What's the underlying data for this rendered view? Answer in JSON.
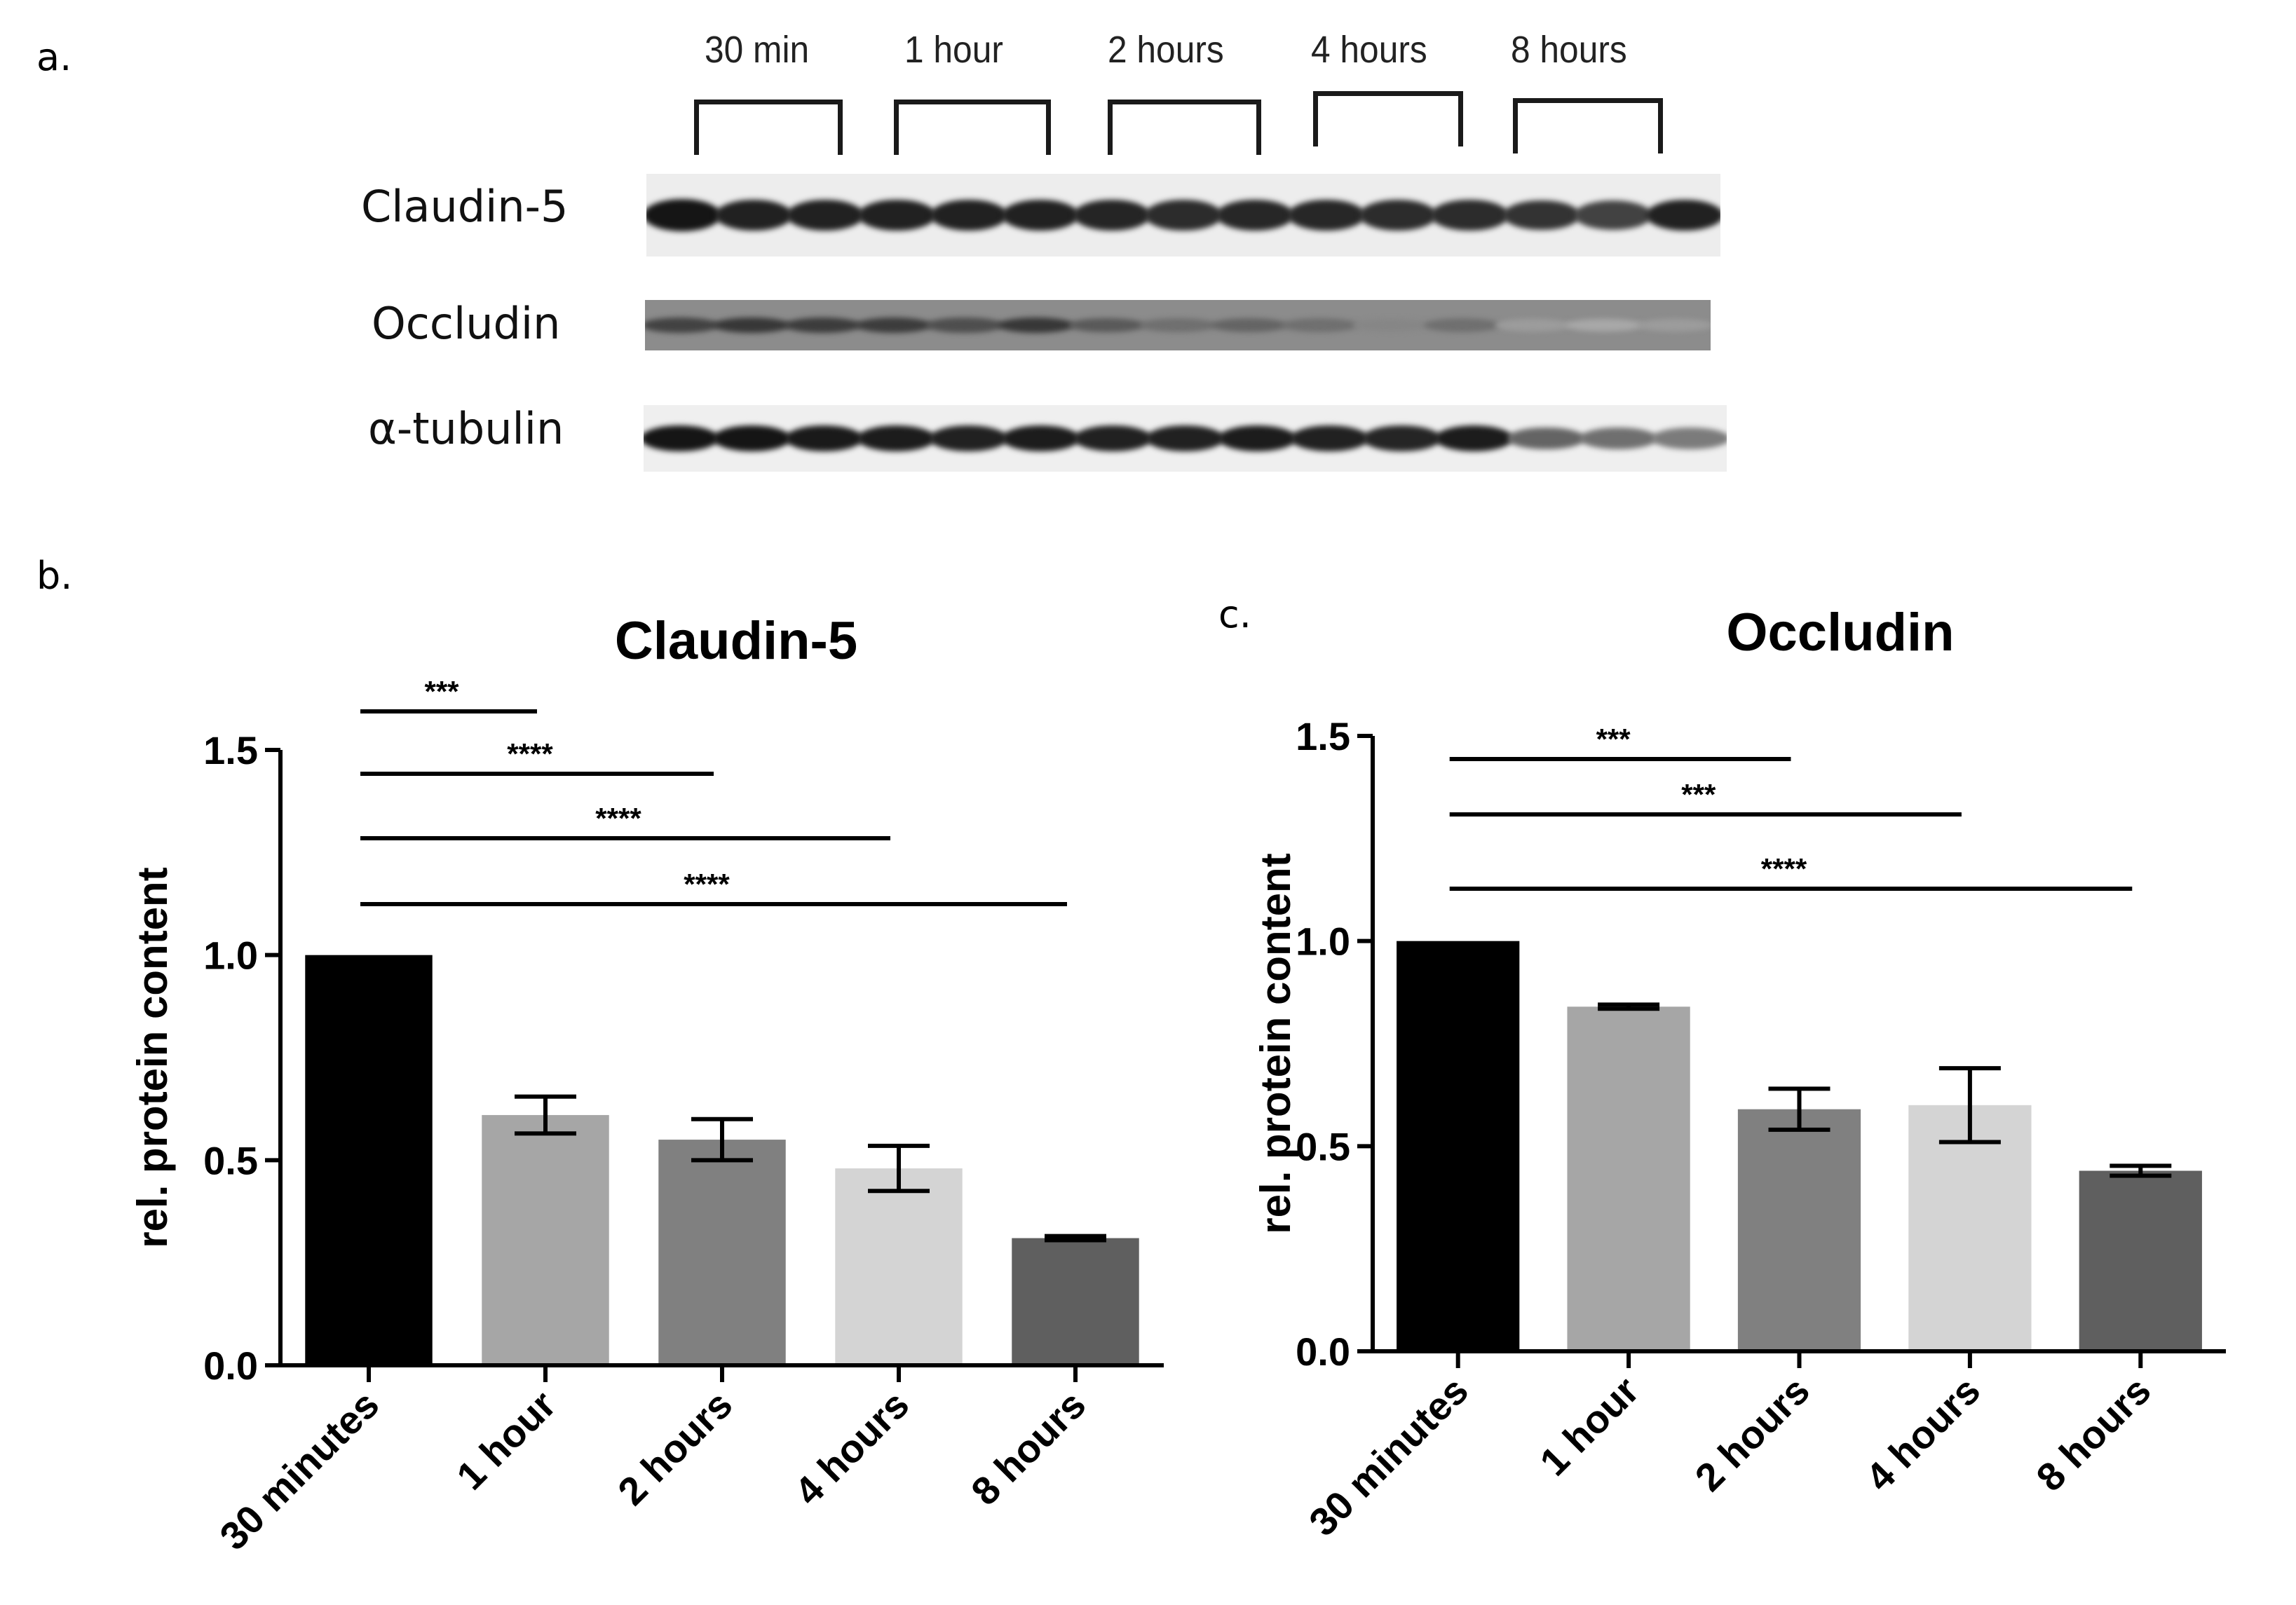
{
  "panels": {
    "a": "a.",
    "b": "b.",
    "c": "c."
  },
  "blot": {
    "time_labels": [
      "30 min",
      "1 hour",
      "2 hours",
      "4 hours",
      "8 hours"
    ],
    "rows": [
      {
        "label": "Claudin-5",
        "intensities": [
          0.95,
          0.9,
          0.9,
          0.9,
          0.9,
          0.9,
          0.88,
          0.85,
          0.87,
          0.87,
          0.85,
          0.85,
          0.82,
          0.75,
          0.9
        ]
      },
      {
        "label": "Occludin",
        "intensities": [
          0.75,
          0.8,
          0.78,
          0.78,
          0.7,
          0.8,
          0.65,
          0.55,
          0.6,
          0.55,
          0.45,
          0.55,
          0.35,
          0.3,
          0.35
        ]
      },
      {
        "label": "α-tubulin",
        "intensities": [
          0.95,
          0.95,
          0.93,
          0.92,
          0.9,
          0.92,
          0.9,
          0.9,
          0.92,
          0.9,
          0.88,
          0.92,
          0.6,
          0.55,
          0.5
        ]
      }
    ]
  },
  "chart_data": [
    {
      "type": "bar",
      "title": "Claudin-5",
      "ylabel": "rel. protein content",
      "xlabel": "",
      "categories": [
        "30 minutes",
        "1 hour",
        "2 hours",
        "4 hours",
        "8 hours"
      ],
      "values": [
        1.0,
        0.61,
        0.55,
        0.48,
        0.31
      ],
      "errors": [
        0,
        0.045,
        0.05,
        0.055,
        0.005
      ],
      "bar_colors": [
        "#000000",
        "#a6a6a6",
        "#808080",
        "#d4d4d4",
        "#5f5f5f"
      ],
      "ylim": [
        0,
        1.5
      ],
      "yticks": [
        "0.0",
        "0.5",
        "1.0",
        "1.5"
      ],
      "significance": [
        {
          "from": 0,
          "to": 1,
          "label": "***"
        },
        {
          "from": 0,
          "to": 2,
          "label": "****"
        },
        {
          "from": 0,
          "to": 3,
          "label": "****"
        },
        {
          "from": 0,
          "to": 4,
          "label": "****"
        }
      ]
    },
    {
      "type": "bar",
      "title": "Occludin",
      "ylabel": "rel. protein content",
      "xlabel": "",
      "categories": [
        "30 minutes",
        "1 hour",
        "2 hours",
        "4 hours",
        "8 hours"
      ],
      "values": [
        1.0,
        0.84,
        0.59,
        0.6,
        0.44
      ],
      "errors": [
        0,
        0.005,
        0.05,
        0.09,
        0.012
      ],
      "bar_colors": [
        "#000000",
        "#a6a6a6",
        "#808080",
        "#d4d4d4",
        "#5f5f5f"
      ],
      "ylim": [
        0,
        1.5
      ],
      "yticks": [
        "0.0",
        "0.5",
        "1.0",
        "1.5"
      ],
      "significance": [
        {
          "from": 0,
          "to": 2,
          "label": "***"
        },
        {
          "from": 0,
          "to": 3,
          "label": "***"
        },
        {
          "from": 0,
          "to": 4,
          "label": "****"
        }
      ]
    }
  ]
}
